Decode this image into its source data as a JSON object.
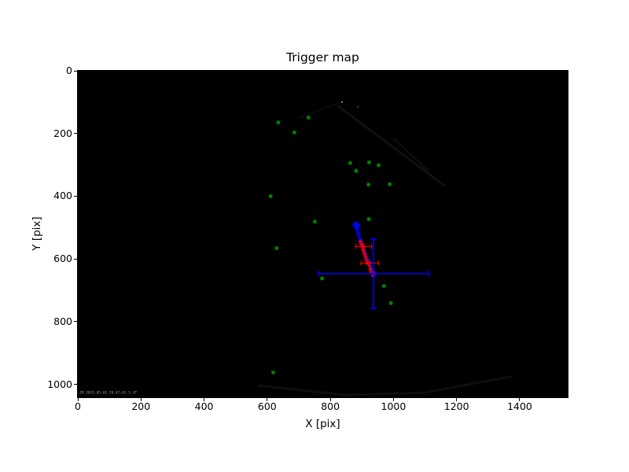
{
  "figure": {
    "title": "Trigger map",
    "xlabel": "X [pix]",
    "ylabel": "Y [pix]",
    "timestamp_overlay": "JM 2015-05-05 20:47:01.5 UT"
  },
  "chart_data": {
    "type": "scatter",
    "title": "Trigger map",
    "xlabel": "X [pix]",
    "ylabel": "Y [pix]",
    "xlim": [
      0,
      1552
    ],
    "ylim": [
      1041,
      0
    ],
    "y_axis_inverted": true,
    "x_ticks": [
      0,
      200,
      400,
      600,
      800,
      1000,
      1200,
      1400
    ],
    "y_ticks": [
      0,
      200,
      400,
      600,
      800,
      1000
    ],
    "grid": false,
    "plot_background": "#000000",
    "colors": {
      "stars": "#008000",
      "track": "#0000ff",
      "fine": "#ff0000"
    },
    "series": [
      {
        "name": "star-matches",
        "marker": "circle",
        "color": "#008000",
        "size": 2.5,
        "points": [
          [
            635,
            165
          ],
          [
            731,
            149
          ],
          [
            686,
            197
          ],
          [
            863,
            294
          ],
          [
            923,
            292
          ],
          [
            953,
            301
          ],
          [
            882,
            319
          ],
          [
            921,
            363
          ],
          [
            988,
            362
          ],
          [
            611,
            400
          ],
          [
            751,
            481
          ],
          [
            922,
            473
          ],
          [
            630,
            566
          ],
          [
            774,
            662
          ],
          [
            970,
            686
          ],
          [
            992,
            741
          ],
          [
            619,
            962
          ]
        ]
      },
      {
        "name": "trigger-track-bold",
        "marker": "plus",
        "color": "#0000ff",
        "size": 4,
        "stroke": 2.2,
        "points": [
          [
            882,
            489
          ],
          [
            881,
            493
          ],
          [
            884,
            492
          ],
          [
            883,
            497
          ]
        ]
      },
      {
        "name": "trigger-track",
        "marker": "plus",
        "color": "#0000ff",
        "size": 3,
        "stroke": 1.3,
        "points": [
          [
            885,
            503
          ],
          [
            886,
            510
          ],
          [
            888,
            518
          ],
          [
            890,
            526
          ],
          [
            893,
            534
          ],
          [
            896,
            543
          ],
          [
            899,
            552
          ],
          [
            903,
            562
          ],
          [
            906,
            571
          ],
          [
            910,
            581
          ],
          [
            914,
            591
          ],
          [
            918,
            601
          ],
          [
            922,
            611
          ],
          [
            926,
            621
          ],
          [
            930,
            631
          ],
          [
            933,
            639
          ],
          [
            936,
            647
          ],
          [
            939,
            654
          ]
        ]
      },
      {
        "name": "trigger-points-fine",
        "marker": "plus",
        "color": "#ff0000",
        "size": 2,
        "stroke": 0.9,
        "points": [
          [
            898,
            542
          ],
          [
            893,
            546
          ],
          [
            900,
            549
          ],
          [
            896,
            553
          ],
          [
            902,
            556
          ],
          [
            899,
            560
          ],
          [
            905,
            563
          ],
          [
            901,
            567
          ],
          [
            907,
            571
          ],
          [
            903,
            574
          ],
          [
            909,
            578
          ],
          [
            906,
            583
          ],
          [
            912,
            586
          ],
          [
            908,
            590
          ],
          [
            914,
            594
          ],
          [
            911,
            599
          ],
          [
            917,
            603
          ],
          [
            913,
            607
          ],
          [
            919,
            611
          ],
          [
            916,
            616
          ],
          [
            922,
            620
          ],
          [
            925,
            625
          ],
          [
            928,
            630
          ],
          [
            924,
            634
          ],
          [
            931,
            638
          ],
          [
            927,
            642
          ],
          [
            934,
            646
          ],
          [
            937,
            650
          ],
          [
            940,
            645
          ],
          [
            933,
            653
          ]
        ]
      },
      {
        "name": "centroid-errorbars",
        "marker": "plus-xerr",
        "color": "#ff0000",
        "size": 4,
        "stroke": 1.1,
        "points": [
          {
            "x": 906,
            "y": 560,
            "xerr": 25
          },
          {
            "x": 925,
            "y": 613,
            "xerr": 28
          }
        ]
      },
      {
        "name": "mean-position-errorbar",
        "marker": "cross-xyerr",
        "color": "#0000ff",
        "size": 0,
        "stroke": 1.5,
        "points": [
          {
            "x": 937,
            "y": 647,
            "xerr": 175,
            "yerr": 111
          }
        ]
      }
    ],
    "faint_features": {
      "lines": [
        {
          "points": [
            [
              825,
              113
            ],
            [
              1160,
              365
            ]
          ],
          "color": "#101010",
          "width": 3
        },
        {
          "points": [
            [
              1000,
              215
            ],
            [
              1110,
              318
            ]
          ],
          "color": "#0d0d0d",
          "width": 2.5
        },
        {
          "points": [
            [
              700,
              150
            ],
            [
              820,
              105
            ]
          ],
          "color": "#0c0c0c",
          "width": 2
        },
        {
          "points": [
            [
              575,
              1004
            ],
            [
              850,
              1034
            ],
            [
              1100,
              1026
            ],
            [
              1373,
              975
            ]
          ],
          "color": "#0e0e0e",
          "width": 3
        }
      ],
      "dots": [
        {
          "x": 837,
          "y": 100,
          "r": 1.2,
          "color": "#8a8a8a"
        },
        {
          "x": 887,
          "y": 115,
          "r": 1.0,
          "color": "#5a5a5a"
        }
      ]
    }
  }
}
